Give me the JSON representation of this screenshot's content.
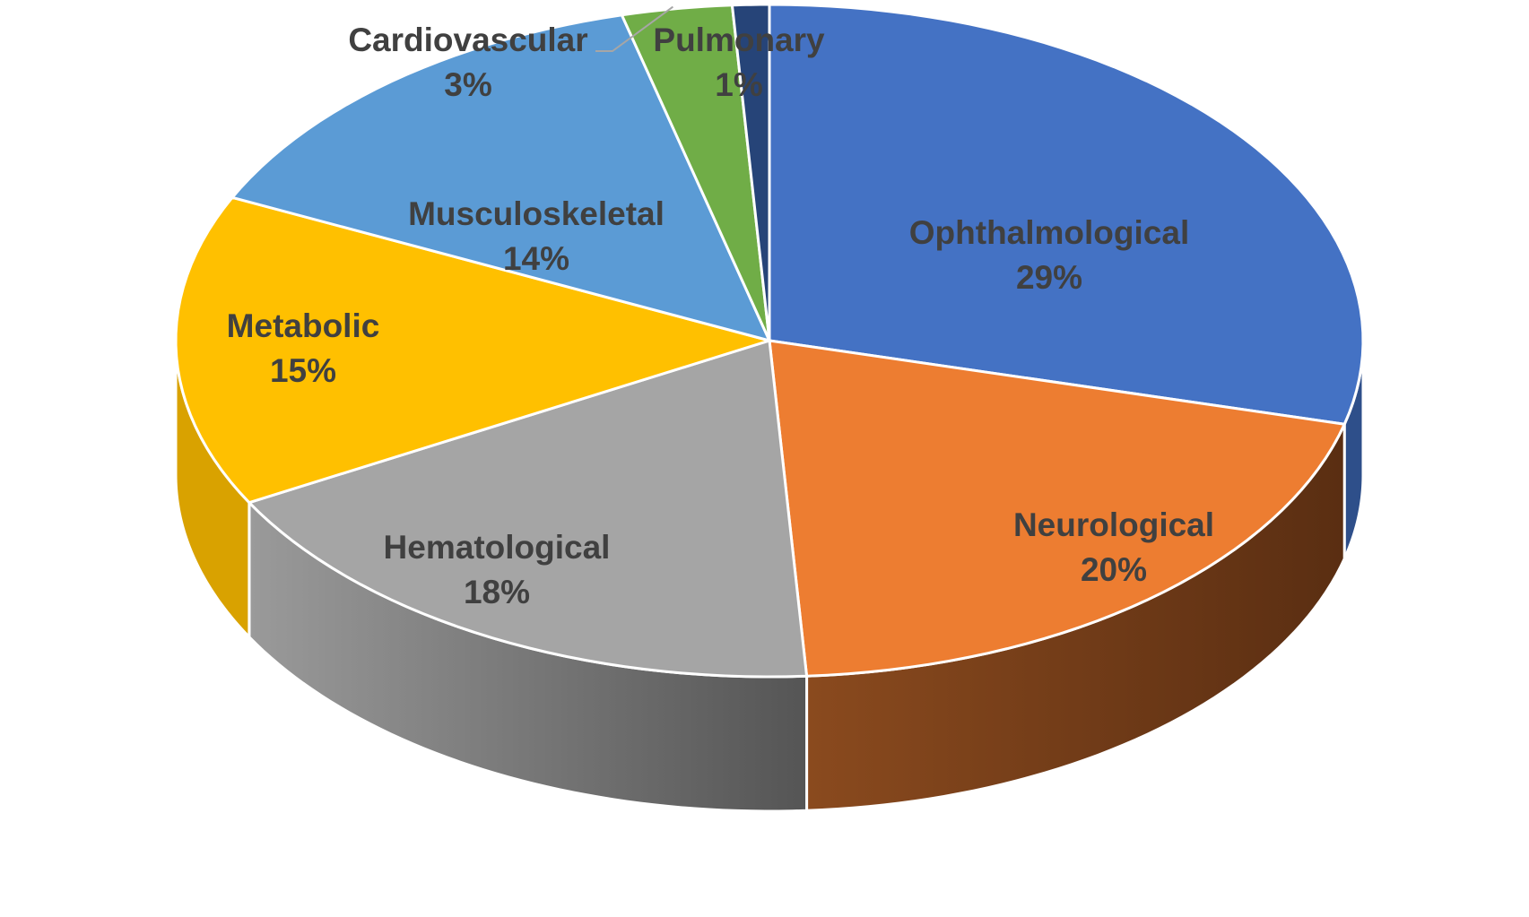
{
  "chart_data": {
    "type": "pie",
    "style": "3d",
    "title": "",
    "slices": [
      {
        "label": "Ophthalmological",
        "value": 29,
        "value_label": "29%",
        "color": "#4472C4",
        "side_color": "#2E4F8A"
      },
      {
        "label": "Neurological",
        "value": 20,
        "value_label": "20%",
        "color": "#ED7D31",
        "side_color": "#7A3F18"
      },
      {
        "label": "Hematological",
        "value": 18,
        "value_label": "18%",
        "color": "#A5A5A5",
        "side_color": "#6E6E6E"
      },
      {
        "label": "Metabolic",
        "value": 15,
        "value_label": "15%",
        "color": "#FFC000",
        "side_color": "#D9A200"
      },
      {
        "label": "Musculoskeletal",
        "value": 14,
        "value_label": "14%",
        "color": "#5B9BD5",
        "side_color": "#3E73A3"
      },
      {
        "label": "Cardiovascular",
        "value": 3,
        "value_label": "3%",
        "color": "#70AD47",
        "side_color": "#4E7A32"
      },
      {
        "label": "Pulmonary",
        "value": 1,
        "value_label": "1%",
        "color": "#264478",
        "side_color": "#172B4D"
      }
    ],
    "legend": "none",
    "label_color": "#404040",
    "start_angle_deg": 0,
    "direction": "clockwise"
  }
}
